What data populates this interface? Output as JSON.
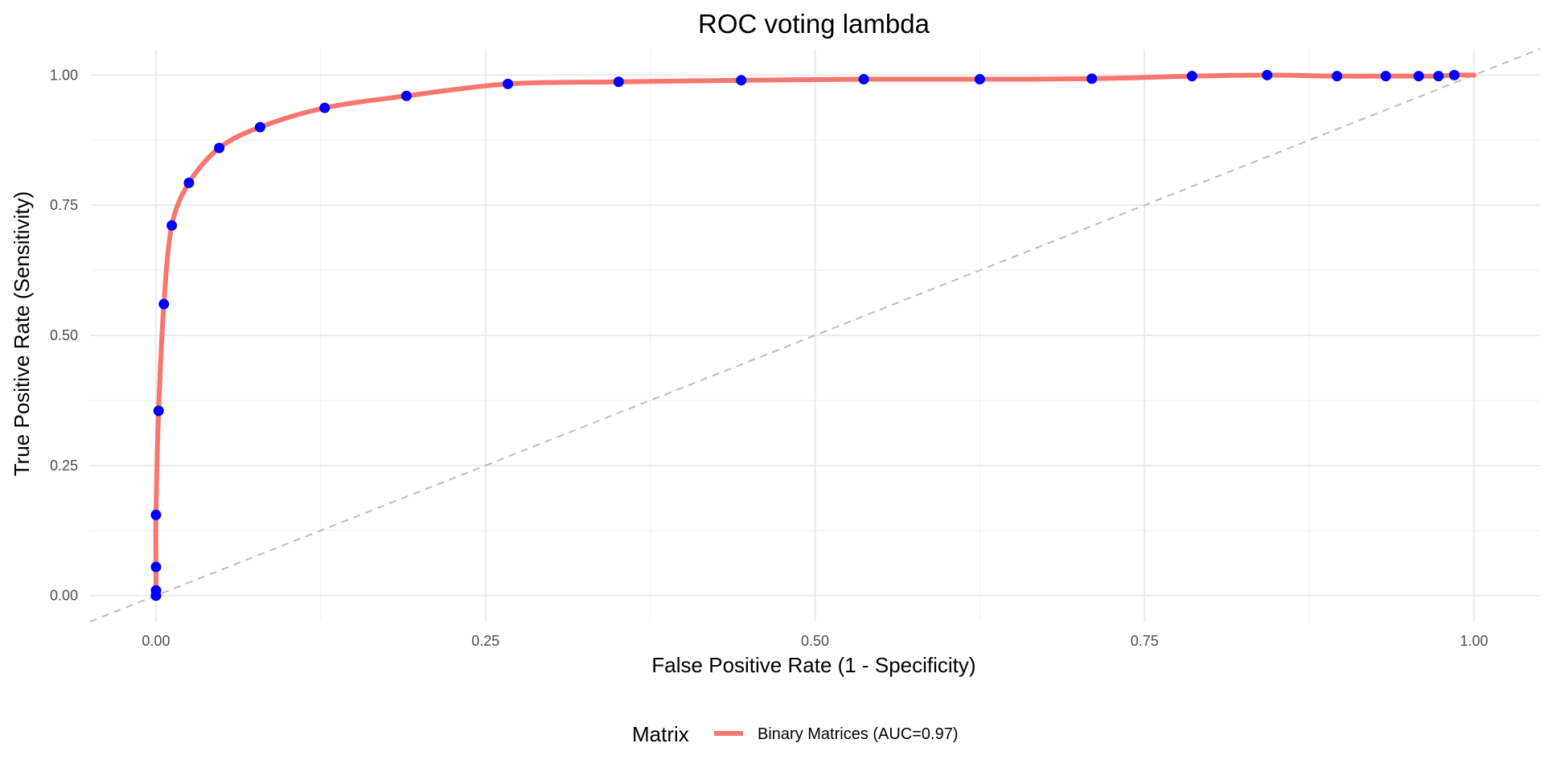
{
  "chart_data": {
    "type": "line",
    "title": "ROC voting lambda",
    "xlabel": "False Positive Rate (1 - Specificity)",
    "ylabel": "True Positive Rate (Sensitivity)",
    "xlim": [
      -0.05,
      1.05
    ],
    "ylim": [
      -0.05,
      1.05
    ],
    "x_ticks": [
      0.0,
      0.25,
      0.5,
      0.75,
      1.0
    ],
    "y_ticks": [
      0.0,
      0.25,
      0.5,
      0.75,
      1.0
    ],
    "x_tick_labels": [
      "0.00",
      "0.25",
      "0.50",
      "0.75",
      "1.00"
    ],
    "y_tick_labels": [
      "0.00",
      "0.25",
      "0.50",
      "0.75",
      "1.00"
    ],
    "grid": true,
    "legend": {
      "title": "Matrix",
      "position": "bottom",
      "entries": [
        "Binary Matrices (AUC=0.97)"
      ]
    },
    "reference_line": {
      "from": [
        0,
        0
      ],
      "to": [
        1,
        1
      ],
      "style": "dashed",
      "color": "#bdbdbd"
    },
    "series": [
      {
        "name": "Binary Matrices (AUC=0.97)",
        "color": "#f8766d",
        "point_color": "#0000ff",
        "x": [
          0.0,
          0.0,
          0.0,
          0.0,
          0.0,
          0.002,
          0.006,
          0.012,
          0.025,
          0.048,
          0.079,
          0.128,
          0.19,
          0.267,
          0.351,
          0.444,
          0.537,
          0.625,
          0.71,
          0.786,
          0.843,
          0.896,
          0.933,
          0.958,
          0.973,
          0.985,
          1.0
        ],
        "y": [
          0.0,
          0.0,
          0.01,
          0.055,
          0.155,
          0.355,
          0.56,
          0.711,
          0.793,
          0.86,
          0.9,
          0.937,
          0.96,
          0.983,
          0.987,
          0.99,
          0.992,
          0.992,
          0.993,
          0.998,
          1.0,
          0.998,
          0.998,
          0.998,
          0.998,
          1.0,
          1.0
        ],
        "show_point": [
          true,
          true,
          true,
          true,
          true,
          true,
          true,
          true,
          true,
          true,
          true,
          true,
          true,
          true,
          true,
          true,
          true,
          true,
          true,
          true,
          true,
          true,
          true,
          true,
          true,
          true,
          false
        ]
      }
    ]
  }
}
